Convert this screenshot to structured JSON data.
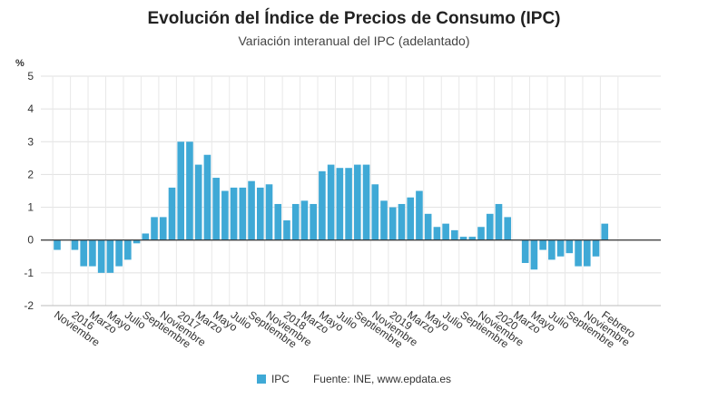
{
  "chart_data": {
    "type": "bar",
    "title": "Evolución del Índice de Precios de Consumo (IPC)",
    "subtitle": "Variación interanual del IPC (adelantado)",
    "ylabel": "%",
    "ylim": [
      -2,
      5
    ],
    "yticks": [
      5,
      4,
      3,
      2,
      1,
      0,
      -1,
      -2
    ],
    "grid": true,
    "legend_position": "bottom",
    "source": "Fuente: INE, www.epdata.es",
    "color": "#3fa9d6",
    "x_tick_labels": [
      {
        "index": 1,
        "label": "Noviembre"
      },
      {
        "index": 3,
        "label": "2016"
      },
      {
        "index": 5,
        "label": "Marzo"
      },
      {
        "index": 7,
        "label": "Mayo"
      },
      {
        "index": 9,
        "label": "Julio"
      },
      {
        "index": 11,
        "label": "Septiembre"
      },
      {
        "index": 13,
        "label": "Noviembre"
      },
      {
        "index": 15,
        "label": "2017"
      },
      {
        "index": 17,
        "label": "Marzo"
      },
      {
        "index": 19,
        "label": "Mayo"
      },
      {
        "index": 21,
        "label": "Julio"
      },
      {
        "index": 23,
        "label": "Septiembre"
      },
      {
        "index": 25,
        "label": "Noviembre"
      },
      {
        "index": 27,
        "label": "2018"
      },
      {
        "index": 29,
        "label": "Marzo"
      },
      {
        "index": 31,
        "label": "Mayo"
      },
      {
        "index": 33,
        "label": "Julio"
      },
      {
        "index": 35,
        "label": "Septiembre"
      },
      {
        "index": 37,
        "label": "Noviembre"
      },
      {
        "index": 39,
        "label": "2019"
      },
      {
        "index": 41,
        "label": "Marzo"
      },
      {
        "index": 43,
        "label": "Mayo"
      },
      {
        "index": 45,
        "label": "Julio"
      },
      {
        "index": 47,
        "label": "Septiembre"
      },
      {
        "index": 49,
        "label": "Noviembre"
      },
      {
        "index": 51,
        "label": "2020"
      },
      {
        "index": 53,
        "label": "Marzo"
      },
      {
        "index": 55,
        "label": "Mayo"
      },
      {
        "index": 57,
        "label": "Julio"
      },
      {
        "index": 59,
        "label": "Septiembre"
      },
      {
        "index": 61,
        "label": "Noviembre"
      },
      {
        "index": 63,
        "label": "Febrero"
      }
    ],
    "series": [
      {
        "name": "IPC",
        "values": [
          -0.3,
          0,
          -0.3,
          -0.8,
          -0.8,
          -1.0,
          -1.0,
          -0.8,
          -0.6,
          -0.1,
          0.2,
          0.7,
          0.7,
          1.6,
          3.0,
          3.0,
          2.3,
          2.6,
          1.9,
          1.5,
          1.6,
          1.6,
          1.8,
          1.6,
          1.7,
          1.1,
          0.6,
          1.1,
          1.2,
          1.1,
          2.1,
          2.3,
          2.2,
          2.2,
          2.3,
          2.3,
          1.7,
          1.2,
          1.0,
          1.1,
          1.3,
          1.5,
          0.8,
          0.4,
          0.5,
          0.3,
          0.1,
          0.1,
          0.4,
          0.8,
          1.1,
          0.7,
          0,
          -0.7,
          -0.9,
          -0.3,
          -0.6,
          -0.5,
          -0.4,
          -0.8,
          -0.8,
          -0.5,
          0.5
        ]
      }
    ]
  }
}
